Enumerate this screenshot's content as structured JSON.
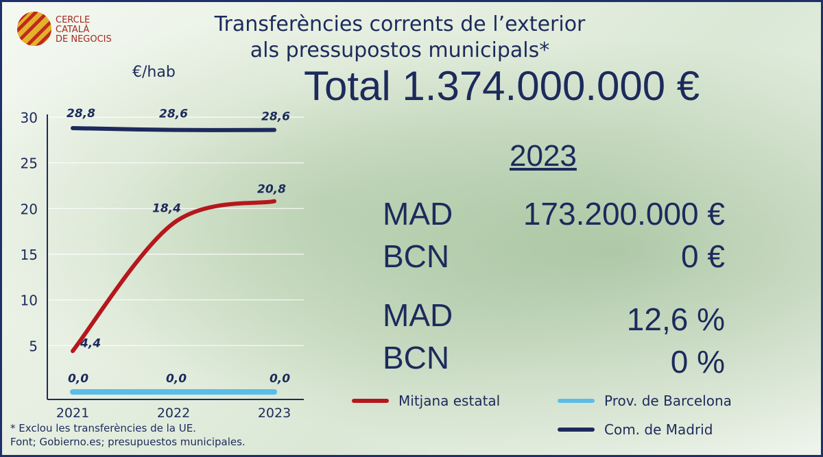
{
  "logo": {
    "line1": "CERCLE",
    "line2": "CATALÀ",
    "line3": "DE NEGOCIS"
  },
  "title": {
    "line1": "Transferències corrents de l’exterior",
    "line2": "als pressupostos municipals*"
  },
  "unit": "€/hab",
  "total": "Total 1.374.000.000 €",
  "year": "2023",
  "stats": [
    {
      "label": "MAD",
      "value": "173.200.000 €"
    },
    {
      "label": "BCN",
      "value": "0 €"
    },
    {
      "label": "MAD",
      "value": "12,6 %"
    },
    {
      "label": "BCN",
      "value": "0 %"
    }
  ],
  "footnotes": {
    "line1": "* Exclou les transferències de la UE.",
    "line2": "Font; Gobierno.es; presupuestos municipales."
  },
  "colors": {
    "mitjana": "#b5171d",
    "barcelona": "#5bbde6",
    "madrid": "#1c2a5c",
    "text": "#1c2a5c"
  },
  "chart_data": {
    "type": "line",
    "x": [
      "2021",
      "2022",
      "2023"
    ],
    "ylim": [
      0,
      30
    ],
    "yticks": [
      5,
      10,
      15,
      20,
      25,
      30
    ],
    "ylabel": "€/hab",
    "series": [
      {
        "name": "Mitjana estatal",
        "values": [
          4.4,
          18.4,
          20.8
        ],
        "labels": [
          "4,4",
          "18,4",
          "20,8"
        ],
        "color": "#b5171d"
      },
      {
        "name": "Prov. de Barcelona",
        "values": [
          0.0,
          0.0,
          0.0
        ],
        "labels": [
          "0,0",
          "0,0",
          "0,0"
        ],
        "color": "#5bbde6"
      },
      {
        "name": "Com. de Madrid",
        "values": [
          28.8,
          28.6,
          28.6
        ],
        "labels": [
          "28,8",
          "28,6",
          "28,6"
        ],
        "color": "#1c2a5c"
      }
    ],
    "legend_position": "bottom-right"
  }
}
